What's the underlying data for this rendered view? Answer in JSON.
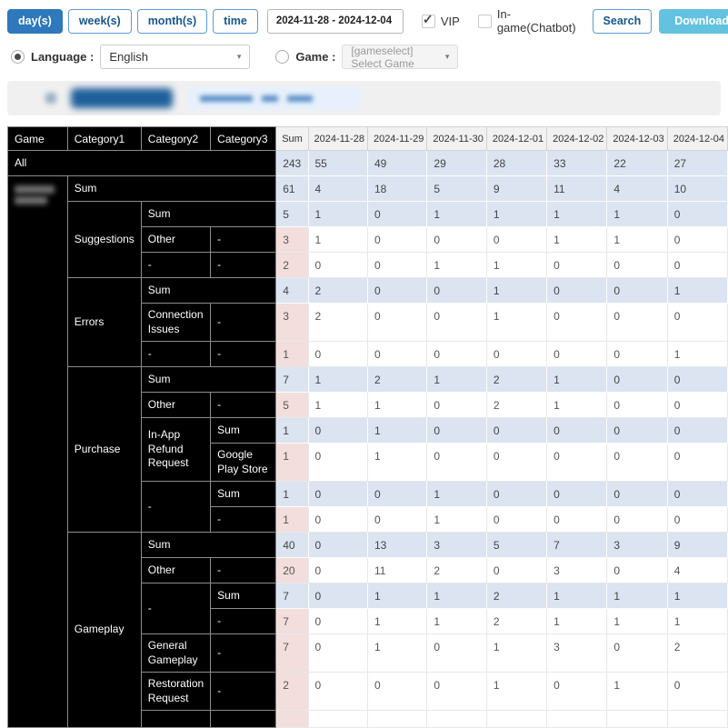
{
  "toolbar": {
    "day": "day(s)",
    "week": "week(s)",
    "month": "month(s)",
    "time": "time",
    "date_range": "2024-11-28 - 2024-12-04",
    "vip_label": "VIP",
    "ingame_label": "In-game(Chatbot)",
    "search": "Search",
    "download": "Download"
  },
  "filters": {
    "language_label": "Language :",
    "language_value": "English",
    "game_label": "Game :",
    "game_value": "[gameselect] Select Game"
  },
  "colors": {
    "accent_blue": "#2e78bb",
    "download_blue": "#63c2df",
    "sum_row_bg": "#dbe4f0",
    "leaf_sum_bg": "#f2dedd",
    "header_bg": "#f1f1f1"
  },
  "table": {
    "headers": [
      "Game",
      "Category1",
      "Category2",
      "Category3",
      "Sum",
      "2024-11-28",
      "2024-11-29",
      "2024-11-30",
      "2024-12-01",
      "2024-12-02",
      "2024-12-03",
      "2024-12-04"
    ],
    "rows": [
      {
        "label": "All",
        "values": [
          243,
          55,
          49,
          29,
          28,
          33,
          22,
          27
        ]
      },
      {
        "c1": "Sum",
        "values": [
          61,
          4,
          18,
          5,
          9,
          11,
          4,
          10
        ]
      },
      {
        "c1": "Suggestions",
        "c2": "Sum",
        "values": [
          5,
          1,
          0,
          1,
          1,
          1,
          1,
          0
        ]
      },
      {
        "c2": "Other",
        "c3": "-",
        "values": [
          3,
          1,
          0,
          0,
          0,
          1,
          1,
          0
        ]
      },
      {
        "c2": "-",
        "c3": "-",
        "values": [
          2,
          0,
          0,
          1,
          1,
          0,
          0,
          0
        ]
      },
      {
        "c1": "Errors",
        "c2": "Sum",
        "values": [
          4,
          2,
          0,
          0,
          1,
          0,
          0,
          1
        ]
      },
      {
        "c2": "Connection Issues",
        "c3": "-",
        "values": [
          3,
          2,
          0,
          0,
          1,
          0,
          0,
          0
        ]
      },
      {
        "c2": "-",
        "c3": "-",
        "values": [
          1,
          0,
          0,
          0,
          0,
          0,
          0,
          1
        ]
      },
      {
        "c1": "Purchase",
        "c2": "Sum",
        "values": [
          7,
          1,
          2,
          1,
          2,
          1,
          0,
          0
        ]
      },
      {
        "c2": "Other",
        "c3": "-",
        "values": [
          5,
          1,
          1,
          0,
          2,
          1,
          0,
          0
        ]
      },
      {
        "c2": "In-App Refund Request",
        "c3": "Sum",
        "values": [
          1,
          0,
          1,
          0,
          0,
          0,
          0,
          0
        ]
      },
      {
        "c3": "Google Play Store",
        "values": [
          1,
          0,
          1,
          0,
          0,
          0,
          0,
          0
        ]
      },
      {
        "c2": "-",
        "c3": "Sum",
        "values": [
          1,
          0,
          0,
          1,
          0,
          0,
          0,
          0
        ]
      },
      {
        "c3": "-",
        "values": [
          1,
          0,
          0,
          1,
          0,
          0,
          0,
          0
        ]
      },
      {
        "c1": "Gameplay",
        "c2": "Sum",
        "values": [
          40,
          0,
          13,
          3,
          5,
          7,
          3,
          9
        ]
      },
      {
        "c2": "Other",
        "c3": "-",
        "values": [
          20,
          0,
          11,
          2,
          0,
          3,
          0,
          4
        ]
      },
      {
        "c2": "-",
        "c3": "Sum",
        "values": [
          7,
          0,
          1,
          1,
          2,
          1,
          1,
          1
        ]
      },
      {
        "c3": "-",
        "values": [
          7,
          0,
          1,
          1,
          2,
          1,
          1,
          1
        ]
      },
      {
        "c2": "General Gameplay",
        "c3": "-",
        "values": [
          7,
          0,
          1,
          0,
          1,
          3,
          0,
          2
        ]
      },
      {
        "c2": "Restoration Request",
        "c3": "-",
        "values": [
          2,
          0,
          0,
          0,
          1,
          0,
          1,
          0
        ]
      }
    ]
  }
}
